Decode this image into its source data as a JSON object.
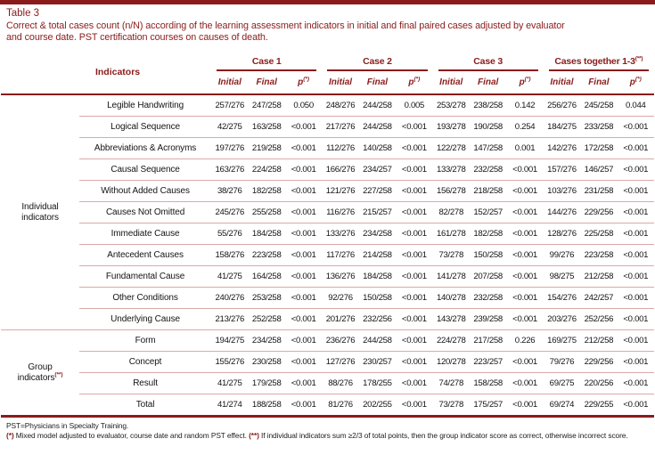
{
  "page": {
    "accent_color": "#8b1b1b",
    "separator_color": "#dba9a9"
  },
  "header": {
    "table_label": "Table 3",
    "caption_line1": "Correct & total cases count (n/N) according of the learning assessment indicators in initial and final paired cases adjusted by evaluator",
    "caption_line2": "and course date. PST certification courses on causes of death."
  },
  "table": {
    "indicators_header": "Indicators",
    "case_groups": [
      {
        "label": "Case 1",
        "sup": ""
      },
      {
        "label": "Case 2",
        "sup": ""
      },
      {
        "label": "Case 3",
        "sup": ""
      },
      {
        "label": "Cases together 1-3",
        "sup": "(**)"
      }
    ],
    "subcolumns": [
      {
        "label": "Initial",
        "sup": ""
      },
      {
        "label": "Final",
        "sup": ""
      },
      {
        "label": "p",
        "sup": "(*)"
      }
    ],
    "sections": [
      {
        "group_label_lines": [
          "Individual",
          "indicators"
        ],
        "group_sup": "",
        "rows": [
          {
            "indicator": "Legible Handwriting",
            "values": [
              "257/276",
              "247/258",
              "0.050",
              "248/276",
              "244/258",
              "0.005",
              "253/278",
              "238/258",
              "0.142",
              "256/276",
              "245/258",
              "0.044"
            ]
          },
          {
            "indicator": "Logical Sequence",
            "values": [
              "42/275",
              "163/258",
              "<0.001",
              "217/276",
              "244/258",
              "<0.001",
              "193/278",
              "190/258",
              "0.254",
              "184/275",
              "233/258",
              "<0.001"
            ]
          },
          {
            "indicator": "Abbreviations & Acronyms",
            "values": [
              "197/276",
              "219/258",
              "<0.001",
              "112/276",
              "140/258",
              "<0.001",
              "122/278",
              "147/258",
              "0.001",
              "142/276",
              "172/258",
              "<0.001"
            ]
          },
          {
            "indicator": "Causal Sequence",
            "values": [
              "163/276",
              "224/258",
              "<0.001",
              "166/276",
              "234/257",
              "<0.001",
              "133/278",
              "232/258",
              "<0.001",
              "157/276",
              "146/257",
              "<0.001"
            ]
          },
          {
            "indicator": "Without Added Causes",
            "values": [
              "38/276",
              "182/258",
              "<0.001",
              "121/276",
              "227/258",
              "<0.001",
              "156/278",
              "218/258",
              "<0.001",
              "103/276",
              "231/258",
              "<0.001"
            ]
          },
          {
            "indicator": "Causes Not Omitted",
            "values": [
              "245/276",
              "255/258",
              "<0.001",
              "116/276",
              "215/257",
              "<0.001",
              "82/278",
              "152/257",
              "<0.001",
              "144/276",
              "229/256",
              "<0.001"
            ]
          },
          {
            "indicator": "Immediate Cause",
            "values": [
              "55/276",
              "184/258",
              "<0.001",
              "133/276",
              "234/258",
              "<0.001",
              "161/278",
              "182/258",
              "<0.001",
              "128/276",
              "225/258",
              "<0.001"
            ]
          },
          {
            "indicator": "Antecedent Causes",
            "values": [
              "158/276",
              "223/258",
              "<0.001",
              "117/276",
              "214/258",
              "<0.001",
              "73/278",
              "150/258",
              "<0.001",
              "99/276",
              "223/258",
              "<0.001"
            ]
          },
          {
            "indicator": "Fundamental Cause",
            "values": [
              "41/275",
              "164/258",
              "<0.001",
              "136/276",
              "184/258",
              "<0.001",
              "141/278",
              "207/258",
              "<0.001",
              "98/275",
              "212/258",
              "<0.001"
            ]
          },
          {
            "indicator": "Other Conditions",
            "values": [
              "240/276",
              "253/258",
              "<0.001",
              "92/276",
              "150/258",
              "<0.001",
              "140/278",
              "232/258",
              "<0.001",
              "154/276",
              "242/257",
              "<0.001"
            ]
          },
          {
            "indicator": "Underlying Cause",
            "values": [
              "213/276",
              "252/258",
              "<0.001",
              "201/276",
              "232/256",
              "<0.001",
              "143/278",
              "239/258",
              "<0.001",
              "203/276",
              "252/256",
              "<0.001"
            ]
          }
        ]
      },
      {
        "group_label_lines": [
          "Group",
          "indicators"
        ],
        "group_sup": "(**)",
        "rows": [
          {
            "indicator": "Form",
            "values": [
              "194/275",
              "234/258",
              "<0.001",
              "236/276",
              "244/258",
              "<0.001",
              "224/278",
              "217/258",
              "0.226",
              "169/275",
              "212/258",
              "<0.001"
            ]
          },
          {
            "indicator": "Concept",
            "values": [
              "155/276",
              "230/258",
              "<0.001",
              "127/276",
              "230/257",
              "<0.001",
              "120/278",
              "223/257",
              "<0.001",
              "79/276",
              "229/256",
              "<0.001"
            ]
          },
          {
            "indicator": "Result",
            "values": [
              "41/275",
              "179/258",
              "<0.001",
              "88/276",
              "178/255",
              "<0.001",
              "74/278",
              "158/258",
              "<0.001",
              "69/275",
              "220/256",
              "<0.001"
            ]
          },
          {
            "indicator": "Total",
            "values": [
              "41/274",
              "188/258",
              "<0.001",
              "81/276",
              "202/255",
              "<0.001",
              "73/278",
              "175/257",
              "<0.001",
              "69/274",
              "229/255",
              "<0.001"
            ]
          }
        ]
      }
    ]
  },
  "footnotes": {
    "pst": "PST=Physicians in Specialty Training.",
    "fn1_marker": "(*)",
    "fn1_text": " Mixed model adjusted to evaluator, course date and random PST effect. ",
    "fn2_marker": "(**)",
    "fn2_text": " If individual indicators sum ≥2/3 of total points, then the group indicator score as correct, otherwise incorrect score."
  }
}
